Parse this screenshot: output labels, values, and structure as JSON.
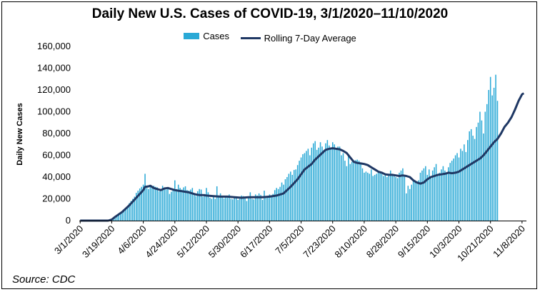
{
  "chart_data": {
    "type": "bar",
    "title": "Daily New U.S. Cases of COVID-19, 3/1/2020–11/10/2020",
    "ylabel": "Daily New Cases",
    "xlabel": "",
    "ylim": [
      0,
      160000
    ],
    "y_ticks": [
      "0",
      "20,000",
      "40,000",
      "60,000",
      "80,000",
      "100,000",
      "120,000",
      "140,000",
      "160,000"
    ],
    "y_tick_values": [
      0,
      20000,
      40000,
      60000,
      80000,
      100000,
      120000,
      140000,
      160000
    ],
    "x_ticks": [
      "3/1/2020",
      "3/19/2020",
      "4/6/2020",
      "4/24/2020",
      "5/12/2020",
      "5/30/2020",
      "6/17/2020",
      "7/5/2020",
      "7/23/2020",
      "8/10/2020",
      "8/28/2020",
      "9/15/2020",
      "10/3/2020",
      "10/21/2020",
      "11/8/2020"
    ],
    "x_tick_day_index": [
      0,
      18,
      36,
      54,
      72,
      90,
      108,
      126,
      144,
      162,
      180,
      198,
      216,
      234,
      252
    ],
    "grid": false,
    "legend_placement": "top-center",
    "series": [
      {
        "name": "Cases",
        "kind": "bar",
        "color": "#2aa9d6",
        "values": [
          0,
          0,
          0,
          0,
          0,
          0,
          0,
          0,
          0,
          0,
          0,
          0,
          0,
          0,
          0,
          0,
          0,
          0,
          1000,
          2000,
          2500,
          4000,
          5500,
          7000,
          8500,
          10500,
          11500,
          12000,
          16000,
          18000,
          20000,
          22000,
          25500,
          27500,
          29500,
          31000,
          33000,
          43000,
          30500,
          29000,
          32000,
          30500,
          32000,
          31000,
          30500,
          27000,
          28000,
          32000,
          29500,
          28500,
          30000,
          24500,
          26500,
          28000,
          37000,
          29000,
          33000,
          30000,
          28500,
          30500,
          31500,
          28000,
          27500,
          28500,
          30000,
          24000,
          22500,
          27000,
          29000,
          28500,
          22000,
          24500,
          30000,
          26000,
          21000,
          20000,
          22000,
          20000,
          31500,
          23000,
          25000,
          22000,
          20500,
          22000,
          21000,
          24000,
          20000,
          19500,
          22000,
          21000,
          19000,
          20000,
          23000,
          22500,
          22000,
          18000,
          21000,
          26000,
          20000,
          19500,
          24000,
          23000,
          25000,
          23500,
          19000,
          27500,
          22000,
          21500,
          24000,
          23000,
          24500,
          28000,
          30000,
          29000,
          31000,
          35000,
          33000,
          38000,
          40000,
          43000,
          45000,
          42000,
          46500,
          47000,
          51000,
          55000,
          58000,
          61000,
          62000,
          64000,
          66000,
          60000,
          67000,
          71000,
          73000,
          65000,
          67000,
          72000,
          68000,
          65000,
          71000,
          74000,
          69000,
          66000,
          72000,
          70000,
          66500,
          68000,
          68000,
          60000,
          62000,
          55000,
          50000,
          61000,
          52000,
          54000,
          55000,
          55500,
          56000,
          55000,
          52000,
          48000,
          44000,
          45000,
          44000,
          43000,
          47000,
          41000,
          42000,
          43000,
          44000,
          45000,
          43000,
          41000,
          42000,
          40000,
          43000,
          46000,
          42000,
          41000,
          40000,
          39000,
          44000,
          46000,
          48000,
          41500,
          25000,
          32000,
          29000,
          33000,
          38000,
          37000,
          35000,
          37000,
          44000,
          46000,
          48000,
          50000,
          42000,
          47000,
          39000,
          46000,
          49000,
          52000,
          41000,
          44000,
          47000,
          50000,
          46000,
          44000,
          49000,
          53000,
          55000,
          57000,
          60000,
          62000,
          58000,
          66000,
          64000,
          70000,
          63000,
          74000,
          82000,
          84000,
          78000,
          75000,
          86000,
          90000,
          100000,
          92000,
          80000,
          100000,
          107000,
          120000,
          132000,
          115000,
          122000,
          134000,
          110000
        ],
        "value_range": "approx. 0 to 134,000"
      },
      {
        "name": "Rolling 7-Day Average",
        "kind": "line",
        "color": "#1f3864",
        "points": [
          [
            0,
            0
          ],
          [
            16,
            0
          ],
          [
            18,
            1000
          ],
          [
            20,
            3500
          ],
          [
            24,
            8000
          ],
          [
            28,
            14000
          ],
          [
            32,
            21000
          ],
          [
            36,
            28000
          ],
          [
            37,
            31000
          ],
          [
            39,
            31500
          ],
          [
            40,
            32000
          ],
          [
            42,
            30000
          ],
          [
            44,
            29000
          ],
          [
            46,
            28000
          ],
          [
            48,
            29500
          ],
          [
            50,
            30000
          ],
          [
            52,
            29000
          ],
          [
            54,
            28000
          ],
          [
            56,
            27500
          ],
          [
            58,
            27000
          ],
          [
            60,
            26500
          ],
          [
            62,
            26000
          ],
          [
            64,
            25000
          ],
          [
            66,
            24000
          ],
          [
            68,
            23500
          ],
          [
            70,
            23500
          ],
          [
            72,
            23000
          ],
          [
            76,
            22500
          ],
          [
            80,
            22000
          ],
          [
            84,
            22000
          ],
          [
            88,
            21500
          ],
          [
            92,
            21000
          ],
          [
            96,
            21500
          ],
          [
            100,
            21500
          ],
          [
            104,
            21500
          ],
          [
            108,
            22000
          ],
          [
            112,
            23000
          ],
          [
            116,
            25000
          ],
          [
            120,
            31000
          ],
          [
            124,
            38000
          ],
          [
            128,
            47000
          ],
          [
            132,
            52000
          ],
          [
            134,
            56000
          ],
          [
            136,
            59000
          ],
          [
            138,
            62000
          ],
          [
            140,
            65000
          ],
          [
            142,
            66000
          ],
          [
            144,
            66500
          ],
          [
            146,
            66000
          ],
          [
            148,
            65500
          ],
          [
            150,
            64000
          ],
          [
            152,
            62000
          ],
          [
            154,
            58000
          ],
          [
            156,
            54000
          ],
          [
            158,
            53000
          ],
          [
            160,
            52500
          ],
          [
            162,
            52000
          ],
          [
            164,
            51000
          ],
          [
            166,
            49000
          ],
          [
            168,
            47000
          ],
          [
            170,
            45000
          ],
          [
            172,
            44000
          ],
          [
            174,
            42500
          ],
          [
            176,
            42000
          ],
          [
            178,
            42000
          ],
          [
            180,
            41500
          ],
          [
            182,
            41000
          ],
          [
            184,
            41500
          ],
          [
            186,
            41000
          ],
          [
            188,
            40000
          ],
          [
            190,
            37000
          ],
          [
            192,
            35000
          ],
          [
            194,
            34000
          ],
          [
            196,
            35000
          ],
          [
            198,
            38000
          ],
          [
            200,
            40000
          ],
          [
            202,
            41000
          ],
          [
            204,
            42000
          ],
          [
            206,
            42500
          ],
          [
            208,
            43000
          ],
          [
            210,
            44000
          ],
          [
            212,
            43500
          ],
          [
            214,
            44000
          ],
          [
            216,
            45000
          ],
          [
            218,
            47000
          ],
          [
            220,
            49000
          ],
          [
            222,
            51000
          ],
          [
            224,
            53000
          ],
          [
            226,
            55000
          ],
          [
            228,
            57000
          ],
          [
            230,
            60000
          ],
          [
            232,
            64000
          ],
          [
            234,
            68000
          ],
          [
            236,
            72000
          ],
          [
            238,
            75000
          ],
          [
            240,
            80000
          ],
          [
            242,
            86000
          ],
          [
            244,
            90000
          ],
          [
            246,
            95000
          ],
          [
            248,
            102000
          ],
          [
            250,
            110000
          ],
          [
            252,
            116000
          ],
          [
            253,
            117000
          ]
        ]
      }
    ]
  },
  "source_text": "Source: CDC"
}
